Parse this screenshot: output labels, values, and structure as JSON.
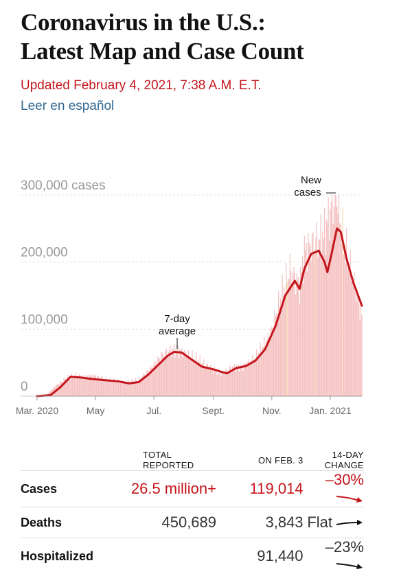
{
  "headline": {
    "line1": "Coronavirus in the U.S.:",
    "line2": "Latest Map and Case Count"
  },
  "updated": "Updated February 4, 2021, 7:38 A.M. E.T.",
  "spanish_link": "Leer en español",
  "colors": {
    "accent_red": "#c4161c",
    "bar_pink": "#f5c0c0",
    "link_blue": "#326891"
  },
  "chart_data": {
    "type": "bar",
    "x_start": "Mar. 2020",
    "x_end": "Feb. 3, 2021",
    "x_ticks": [
      "Mar. 2020",
      "May",
      "Jul.",
      "Sept.",
      "Nov.",
      "Jan. 2021"
    ],
    "y_ticks": [
      "300,000 cases",
      "200,000",
      "100,000",
      "0"
    ],
    "y_tick_values": [
      300000,
      200000,
      100000,
      0
    ],
    "ylim": [
      0,
      300000
    ],
    "grid": true,
    "series": [
      {
        "name": "New cases",
        "kind": "daily bars",
        "points": [
          [
            "2020-03-01",
            0
          ],
          [
            "2020-03-10",
            1000
          ],
          [
            "2020-03-20",
            15000
          ],
          [
            "2020-04-01",
            27000
          ],
          [
            "2020-04-10",
            31000
          ],
          [
            "2020-04-20",
            29000
          ],
          [
            "2020-05-01",
            30000
          ],
          [
            "2020-05-15",
            24000
          ],
          [
            "2020-06-01",
            21000
          ],
          [
            "2020-06-15",
            24000
          ],
          [
            "2020-07-01",
            46000
          ],
          [
            "2020-07-10",
            62000
          ],
          [
            "2020-07-20",
            70000
          ],
          [
            "2020-07-31",
            66000
          ],
          [
            "2020-08-15",
            55000
          ],
          [
            "2020-09-01",
            40000
          ],
          [
            "2020-09-10",
            33000
          ],
          [
            "2020-09-20",
            43000
          ],
          [
            "2020-10-01",
            44000
          ],
          [
            "2020-10-15",
            58000
          ],
          [
            "2020-10-30",
            90000
          ],
          [
            "2020-11-10",
            145000
          ],
          [
            "2020-11-20",
            190000
          ],
          [
            "2020-11-30",
            165000
          ],
          [
            "2020-12-05",
            215000
          ],
          [
            "2020-12-15",
            230000
          ],
          [
            "2020-12-25",
            240000
          ],
          [
            "2021-01-02",
            280000
          ],
          [
            "2021-01-08",
            300000
          ],
          [
            "2021-01-15",
            230000
          ],
          [
            "2021-01-22",
            190000
          ],
          [
            "2021-02-03",
            120000
          ]
        ]
      },
      {
        "name": "7-day average",
        "kind": "line",
        "points": [
          [
            "2020-03-01",
            0
          ],
          [
            "2020-03-15",
            1500
          ],
          [
            "2020-03-25",
            13000
          ],
          [
            "2020-04-05",
            29000
          ],
          [
            "2020-04-15",
            28000
          ],
          [
            "2020-04-25",
            26000
          ],
          [
            "2020-05-10",
            24000
          ],
          [
            "2020-05-25",
            22000
          ],
          [
            "2020-06-05",
            19000
          ],
          [
            "2020-06-15",
            21000
          ],
          [
            "2020-06-25",
            32000
          ],
          [
            "2020-07-05",
            46000
          ],
          [
            "2020-07-15",
            60000
          ],
          [
            "2020-07-22",
            66000
          ],
          [
            "2020-07-30",
            65000
          ],
          [
            "2020-08-10",
            54000
          ],
          [
            "2020-08-20",
            44000
          ],
          [
            "2020-09-01",
            40000
          ],
          [
            "2020-09-10",
            36000
          ],
          [
            "2020-09-15",
            34000
          ],
          [
            "2020-09-25",
            42000
          ],
          [
            "2020-10-05",
            45000
          ],
          [
            "2020-10-15",
            53000
          ],
          [
            "2020-10-25",
            70000
          ],
          [
            "2020-11-05",
            105000
          ],
          [
            "2020-11-15",
            150000
          ],
          [
            "2020-11-25",
            172000
          ],
          [
            "2020-11-30",
            160000
          ],
          [
            "2020-12-05",
            190000
          ],
          [
            "2020-12-12",
            212000
          ],
          [
            "2020-12-20",
            217000
          ],
          [
            "2020-12-26",
            200000
          ],
          [
            "2020-12-29",
            185000
          ],
          [
            "2021-01-02",
            210000
          ],
          [
            "2021-01-08",
            250000
          ],
          [
            "2021-01-12",
            245000
          ],
          [
            "2021-01-18",
            205000
          ],
          [
            "2021-01-25",
            170000
          ],
          [
            "2021-02-03",
            135000
          ]
        ]
      }
    ],
    "annotations": [
      {
        "text_lines": [
          "7-day",
          "average"
        ]
      },
      {
        "text_lines": [
          "New",
          "cases"
        ]
      }
    ]
  },
  "stats": {
    "headers": {
      "col1": "TOTAL REPORTED",
      "col2": "ON FEB. 3",
      "col3": "14-DAY CHANGE"
    },
    "rows": [
      {
        "label": "Cases",
        "total": "26.5 million+",
        "on_date": "119,014",
        "change": "–30%",
        "trend": "down-arrow-icon"
      },
      {
        "label": "Deaths",
        "total": "450,689",
        "on_date": "3,843",
        "change": "Flat",
        "trend": "flat-arrow-icon"
      },
      {
        "label": "Hospitalized",
        "total": "",
        "on_date": "91,440",
        "change": "–23%",
        "trend": "down-arrow-icon"
      }
    ]
  }
}
